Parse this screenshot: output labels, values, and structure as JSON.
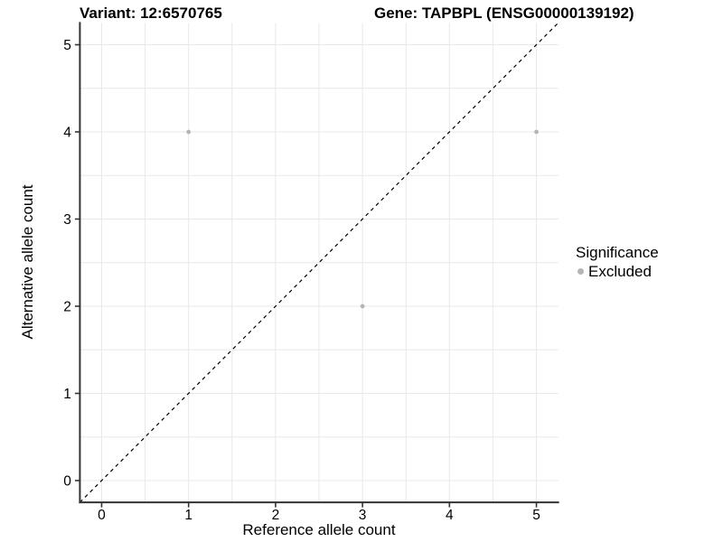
{
  "chart_data": {
    "type": "scatter",
    "titles": {
      "left": "Variant: 12:6570765",
      "right": "Gene: TAPBPL (ENSG00000139192)"
    },
    "xlabel": "Reference allele count",
    "ylabel": "Alternative allele count",
    "xlim": [
      -0.25,
      5.25
    ],
    "ylim": [
      -0.25,
      5.25
    ],
    "xticks": [
      0,
      1,
      2,
      3,
      4,
      5
    ],
    "yticks": [
      0,
      1,
      2,
      3,
      4,
      5
    ],
    "grid": true,
    "minor_grid_step": 0.5,
    "series": [
      {
        "name": "Excluded",
        "color": "#b5b5b5",
        "points": [
          [
            1,
            4
          ],
          [
            3,
            2
          ],
          [
            5,
            4
          ]
        ]
      }
    ],
    "abline": {
      "slope": 1,
      "intercept": 0,
      "style": "dashed",
      "color": "#000000"
    },
    "legend": {
      "title": "Significance",
      "position": "right",
      "items": [
        {
          "label": "Excluded",
          "color": "#b5b5b5"
        }
      ]
    },
    "style": {
      "grid_color": "#e8e8e8",
      "axis_color": "#333333",
      "tick_label_color": "#000000",
      "background": "#ffffff"
    }
  }
}
